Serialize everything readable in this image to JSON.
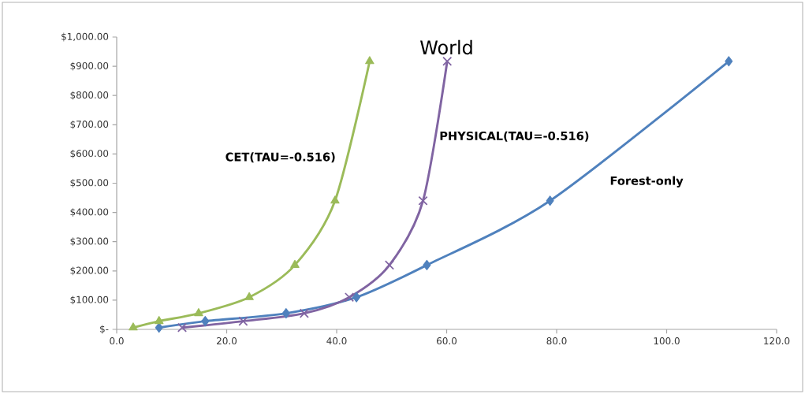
{
  "chart_data": {
    "type": "line",
    "title": "World",
    "xlim": [
      0,
      120
    ],
    "ylim": [
      0,
      1000
    ],
    "xticks": [
      {
        "value": 0,
        "label": "0.0"
      },
      {
        "value": 20,
        "label": "20.0"
      },
      {
        "value": 40,
        "label": "40.0"
      },
      {
        "value": 60,
        "label": "60.0"
      },
      {
        "value": 80,
        "label": "80.0"
      },
      {
        "value": 100,
        "label": "100.0"
      },
      {
        "value": 120,
        "label": "120.0"
      }
    ],
    "yticks": [
      {
        "value": 0,
        "label": "$-"
      },
      {
        "value": 100,
        "label": "$100.00"
      },
      {
        "value": 200,
        "label": "$200.00"
      },
      {
        "value": 300,
        "label": "$300.00"
      },
      {
        "value": 400,
        "label": "$400.00"
      },
      {
        "value": 500,
        "label": "$500.00"
      },
      {
        "value": 600,
        "label": "$600.00"
      },
      {
        "value": 700,
        "label": "$700.00"
      },
      {
        "value": 800,
        "label": "$800.00"
      },
      {
        "value": 900,
        "label": "$900.00"
      },
      {
        "value": 1000,
        "label": "$1,000.00"
      }
    ],
    "grid": false,
    "legend": false,
    "series": [
      {
        "name": "Forest-only",
        "color": "#4f81bd",
        "marker": "diamond",
        "x": [
          7.7,
          16.1,
          30.8,
          43.6,
          56.4,
          78.8,
          111.3
        ],
        "values": [
          6,
          28,
          55,
          110,
          220,
          440,
          917
        ]
      },
      {
        "name": "CET(TAU=-0.516)",
        "color": "#9bbb59",
        "marker": "triangle",
        "x": [
          3.0,
          7.7,
          14.9,
          24.1,
          32.4,
          39.7,
          46.0
        ],
        "values": [
          6,
          28,
          55,
          110,
          220,
          440,
          917
        ]
      },
      {
        "name": "PHYSICAL(TAU=-0.516)",
        "color": "#8064a2",
        "marker": "cross",
        "x": [
          11.9,
          23.0,
          34.1,
          42.3,
          49.6,
          55.7,
          60.1
        ],
        "values": [
          6,
          28,
          55,
          110,
          220,
          440,
          917
        ]
      }
    ]
  }
}
